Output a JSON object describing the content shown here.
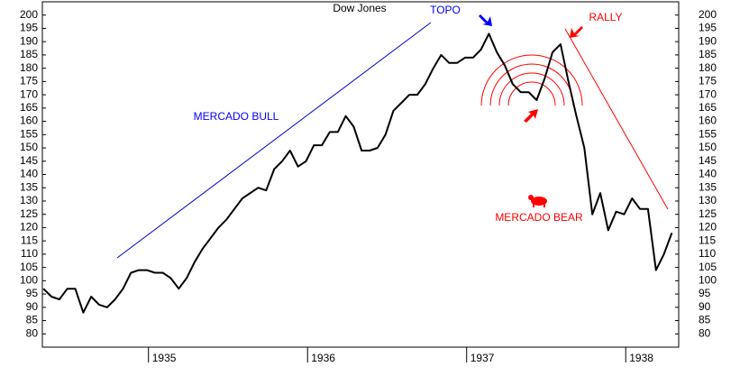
{
  "chart_data": {
    "type": "line",
    "title": "Dow Jones",
    "annotations": [
      "TOPO",
      "RALLY",
      "MERCADO BULL",
      "MERCADO BEAR"
    ],
    "color": "#000000",
    "xlim": [
      1934.333,
      1938.333
    ],
    "xticks": [
      1935,
      1936,
      1937,
      1938
    ],
    "ylim": [
      75,
      205
    ],
    "yticks": [
      80,
      85,
      90,
      95,
      100,
      105,
      110,
      115,
      120,
      125,
      130,
      135,
      140,
      145,
      150,
      155,
      160,
      165,
      170,
      175,
      180,
      185,
      190,
      195,
      200
    ],
    "x": [
      1934.34,
      1934.39,
      1934.44,
      1934.49,
      1934.54,
      1934.59,
      1934.64,
      1934.69,
      1934.74,
      1934.79,
      1934.84,
      1934.89,
      1934.94,
      1934.99,
      1935.04,
      1935.09,
      1935.14,
      1935.19,
      1935.24,
      1935.29,
      1935.34,
      1935.39,
      1935.44,
      1935.49,
      1935.54,
      1935.59,
      1935.64,
      1935.69,
      1935.74,
      1935.79,
      1935.84,
      1935.89,
      1935.94,
      1935.99,
      1936.04,
      1936.09,
      1936.14,
      1936.19,
      1936.24,
      1936.29,
      1936.34,
      1936.39,
      1936.44,
      1936.49,
      1936.54,
      1936.59,
      1936.64,
      1936.69,
      1936.74,
      1936.79,
      1936.84,
      1936.89,
      1936.94,
      1936.99,
      1937.04,
      1937.09,
      1937.14,
      1937.19,
      1937.24,
      1937.29,
      1937.34,
      1937.39,
      1937.44,
      1937.49,
      1937.54,
      1937.59,
      1937.64,
      1937.69,
      1937.74,
      1937.79,
      1937.84,
      1937.89,
      1937.94,
      1937.99,
      1938.04,
      1938.09,
      1938.14,
      1938.19,
      1938.24,
      1938.29
    ],
    "values": [
      97,
      94,
      93,
      97,
      97,
      88,
      94,
      91,
      90,
      93,
      97,
      103,
      104,
      104,
      103,
      103,
      101,
      97,
      101,
      107,
      112,
      116,
      120,
      123,
      127,
      131,
      133,
      135,
      134,
      142,
      145,
      149,
      143,
      145,
      151,
      151,
      156,
      156,
      162,
      158,
      149,
      149,
      150,
      155,
      164,
      167,
      170,
      170,
      174,
      180,
      185,
      182,
      182,
      184,
      184,
      187,
      193,
      186,
      181,
      174,
      171,
      171,
      168,
      176,
      186,
      189,
      175,
      162,
      150,
      125,
      133,
      119,
      126,
      125,
      131,
      127,
      127,
      104,
      110,
      118
    ]
  }
}
